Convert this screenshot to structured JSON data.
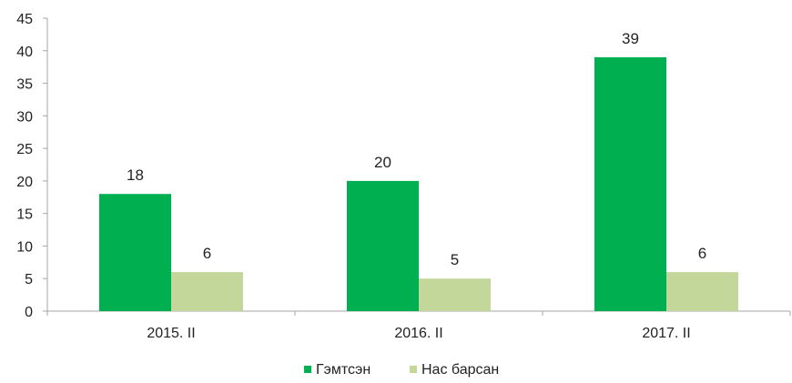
{
  "chart_data": {
    "type": "bar",
    "title": "",
    "xlabel": "",
    "ylabel": "",
    "categories": [
      "2015. II",
      "2016. II",
      "2017. II"
    ],
    "series": [
      {
        "name": "Гэмтсэн",
        "values": [
          18,
          20,
          39
        ],
        "color": "#00b050"
      },
      {
        "name": "Нас барсан",
        "values": [
          6,
          5,
          6
        ],
        "color": "#c4d79b"
      }
    ],
    "ylim": [
      0,
      45
    ],
    "yticks": [
      0,
      5,
      10,
      15,
      20,
      25,
      30,
      35,
      40,
      45
    ],
    "grid": false,
    "data_labels": true,
    "legend_position": "bottom",
    "axis_color": "#a6a6a6"
  }
}
